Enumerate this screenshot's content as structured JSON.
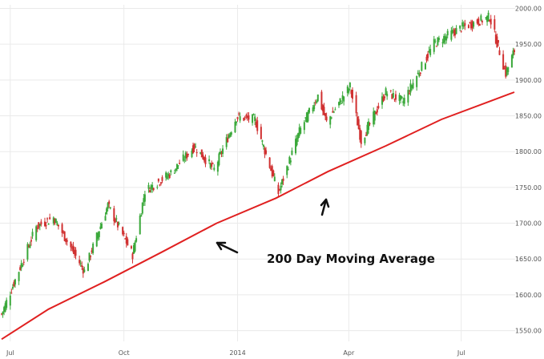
{
  "chart_data": {
    "type": "candlestick",
    "title": "",
    "xlabel": "",
    "ylabel": "",
    "ylim": [
      1535,
      2005
    ],
    "x_ticks": [
      {
        "label": "Jul",
        "date": "2013-07-01"
      },
      {
        "label": "Oct",
        "date": "2013-10-01"
      },
      {
        "label": "2014",
        "date": "2014-01-01"
      },
      {
        "label": "Apr",
        "date": "2014-04-01"
      },
      {
        "label": "Jul",
        "date": "2014-07-01"
      }
    ],
    "y_ticks": [
      "1550.00",
      "1600.00",
      "1650.00",
      "1700.00",
      "1750.00",
      "1800.00",
      "1850.00",
      "1900.00",
      "1950.00",
      "2000.00"
    ],
    "grid": true,
    "up_color": "#3aa83a",
    "down_color": "#d03030",
    "ma_color": "#e02020",
    "price_anchors": [
      {
        "date": "2013-06-24",
        "close": 1573
      },
      {
        "date": "2013-07-22",
        "close": 1695
      },
      {
        "date": "2013-08-05",
        "close": 1708
      },
      {
        "date": "2013-08-30",
        "close": 1633
      },
      {
        "date": "2013-09-18",
        "close": 1725
      },
      {
        "date": "2013-10-08",
        "close": 1656
      },
      {
        "date": "2013-10-18",
        "close": 1745
      },
      {
        "date": "2013-11-08",
        "close": 1770
      },
      {
        "date": "2013-11-27",
        "close": 1807
      },
      {
        "date": "2013-12-13",
        "close": 1775
      },
      {
        "date": "2013-12-31",
        "close": 1848
      },
      {
        "date": "2014-01-15",
        "close": 1845
      },
      {
        "date": "2014-02-03",
        "close": 1742
      },
      {
        "date": "2014-02-20",
        "close": 1828
      },
      {
        "date": "2014-03-07",
        "close": 1878
      },
      {
        "date": "2014-03-14",
        "close": 1841
      },
      {
        "date": "2014-04-02",
        "close": 1891
      },
      {
        "date": "2014-04-11",
        "close": 1815
      },
      {
        "date": "2014-05-01",
        "close": 1883
      },
      {
        "date": "2014-05-15",
        "close": 1870
      },
      {
        "date": "2014-06-09",
        "close": 1951
      },
      {
        "date": "2014-07-01",
        "close": 1973
      },
      {
        "date": "2014-07-24",
        "close": 1988
      },
      {
        "date": "2014-08-06",
        "close": 1909
      },
      {
        "date": "2014-08-13",
        "close": 1941
      }
    ],
    "moving_average": {
      "name": "200 Day Moving Average",
      "points": [
        {
          "date": "2013-06-24",
          "value": 1538
        },
        {
          "date": "2013-08-01",
          "value": 1580
        },
        {
          "date": "2013-09-15",
          "value": 1618
        },
        {
          "date": "2013-11-01",
          "value": 1660
        },
        {
          "date": "2013-12-15",
          "value": 1700
        },
        {
          "date": "2014-02-01",
          "value": 1735
        },
        {
          "date": "2014-03-15",
          "value": 1772
        },
        {
          "date": "2014-05-01",
          "value": 1808
        },
        {
          "date": "2014-06-15",
          "value": 1845
        },
        {
          "date": "2014-08-13",
          "value": 1883
        }
      ]
    },
    "annotations": [
      {
        "text": "200 Day Moving Average"
      }
    ]
  }
}
